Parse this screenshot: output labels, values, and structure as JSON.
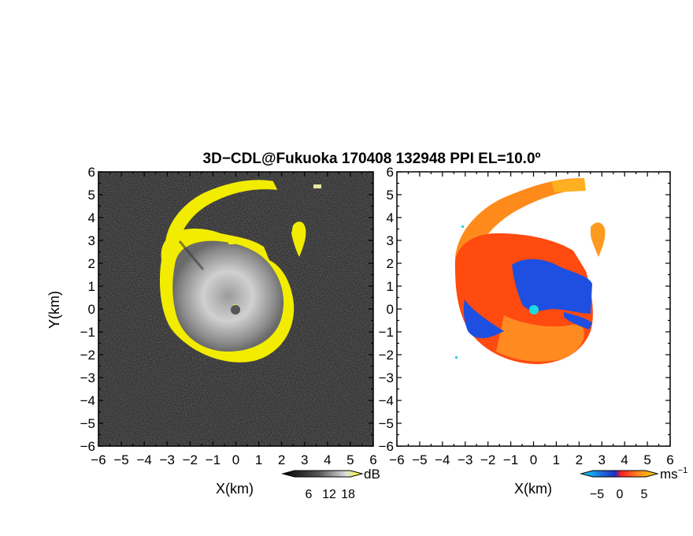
{
  "title": "3D−CDL@Fukuoka 170408 132948 PPI EL=10.0º",
  "chart_data": [
    {
      "type": "heatmap",
      "panel": "left",
      "quantity": "reflectivity",
      "xlabel": "X(km)",
      "ylabel": "Y(km)",
      "xlim": [
        -6,
        6
      ],
      "ylim": [
        -6,
        6
      ],
      "xticks": [
        "−6",
        "−5",
        "−4",
        "−3",
        "−2",
        "−1",
        "0",
        "1",
        "2",
        "3",
        "4",
        "5",
        "6"
      ],
      "yticks": [
        "6",
        "5",
        "4",
        "3",
        "2",
        "1",
        "0",
        "−1",
        "−2",
        "−3",
        "−4",
        "−5",
        "−6"
      ],
      "background_color": "#2b2b2b",
      "echo_core_color": "#d2d2d2",
      "ring_color": "#f2ec00",
      "radar_marker": {
        "x": 0,
        "y": 0,
        "color": "#555555"
      },
      "colorbar": {
        "ticks": [
          "6",
          "12",
          "18"
        ],
        "unit": "dB",
        "colors": [
          "#000000",
          "#555555",
          "#aaaaaa",
          "#ffffff",
          "#ffff00"
        ]
      }
    },
    {
      "type": "heatmap",
      "panel": "right",
      "quantity": "doppler velocity",
      "xlabel": "X(km)",
      "xlim": [
        -6,
        6
      ],
      "ylim": [
        -6,
        6
      ],
      "xticks": [
        "−6",
        "−5",
        "−4",
        "−3",
        "−2",
        "−1",
        "0",
        "1",
        "2",
        "3",
        "4",
        "5",
        "6"
      ],
      "yticks": [
        "6",
        "5",
        "4",
        "3",
        "2",
        "1",
        "0",
        "−1",
        "−2",
        "−3",
        "−4",
        "−5",
        "−6"
      ],
      "approach_color": "#1e4fe0",
      "recede_color": "#ff4a10",
      "far_color": "#ff9a20",
      "radar_marker": {
        "x": 0,
        "y": 0,
        "color": "#22d8e0"
      },
      "colorbar": {
        "ticks": [
          "−5",
          "0",
          "5"
        ],
        "unit": "ms",
        "unit_sup": "−1",
        "colors": [
          "#00e5ff",
          "#1e7be0",
          "#2030c0",
          "#ff2020",
          "#ff9a20",
          "#ffd700"
        ]
      }
    }
  ]
}
